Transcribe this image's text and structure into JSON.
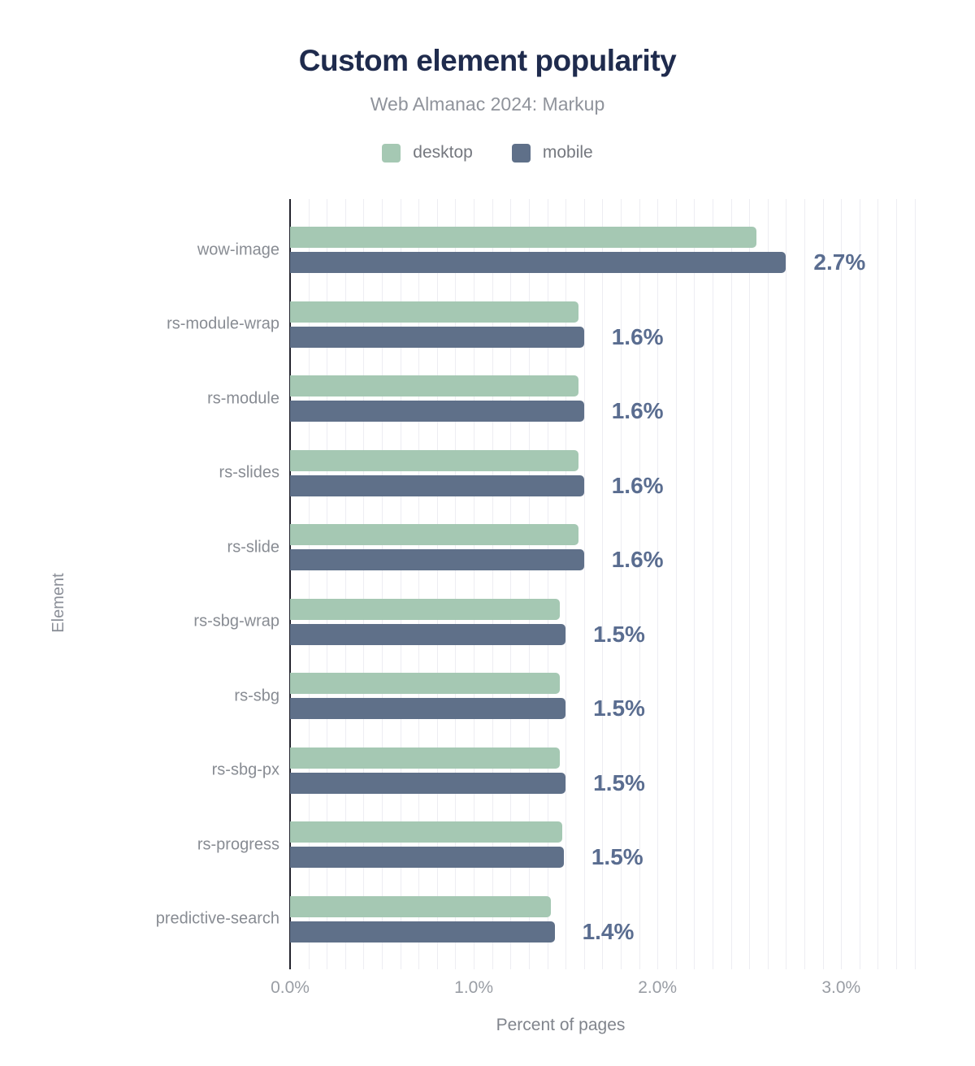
{
  "header": {
    "title": "Custom element popularity",
    "subtitle": "Web Almanac 2024: Markup"
  },
  "legend": {
    "items": [
      {
        "label": "desktop",
        "color": "#a5c8b3"
      },
      {
        "label": "mobile",
        "color": "#5f7089"
      }
    ]
  },
  "chart_data": {
    "type": "bar",
    "orientation": "horizontal",
    "title": "Custom element popularity",
    "subtitle": "Web Almanac 2024: Markup",
    "xlabel": "Percent of pages",
    "ylabel": "Element",
    "xlim": [
      0,
      3.45
    ],
    "grid": "faint vertical gridlines every 0.1%",
    "legend_position": "top",
    "categories": [
      "wow-image",
      "rs-module-wrap",
      "rs-module",
      "rs-slides",
      "rs-slide",
      "rs-sbg-wrap",
      "rs-sbg",
      "rs-sbg-px",
      "rs-progress",
      "predictive-search"
    ],
    "series": [
      {
        "name": "desktop",
        "color": "#a5c8b3",
        "values": [
          2.54,
          1.57,
          1.57,
          1.57,
          1.57,
          1.47,
          1.47,
          1.47,
          1.48,
          1.42
        ]
      },
      {
        "name": "mobile",
        "color": "#5f7089",
        "values": [
          2.7,
          1.6,
          1.6,
          1.6,
          1.6,
          1.5,
          1.5,
          1.5,
          1.49,
          1.44
        ]
      }
    ],
    "bar_labels": [
      "2.7%",
      "1.6%",
      "1.6%",
      "1.6%",
      "1.6%",
      "1.5%",
      "1.5%",
      "1.5%",
      "1.5%",
      "1.4%"
    ],
    "bar_labels_series": "mobile",
    "xticks": [
      {
        "value": 0,
        "label": "0.0%"
      },
      {
        "value": 1,
        "label": "1.0%"
      },
      {
        "value": 2,
        "label": "2.0%"
      },
      {
        "value": 3,
        "label": "3.0%"
      }
    ]
  },
  "colors": {
    "background": "#ffffff",
    "title_text": "#1f2b4d",
    "subtitle_text": "#8f939b",
    "axis_text": "#8b8f98",
    "category_text": "#888c93",
    "value_label_text": "#5a6d90",
    "axis_line": "#23232d",
    "gridline": "#ededf2"
  }
}
